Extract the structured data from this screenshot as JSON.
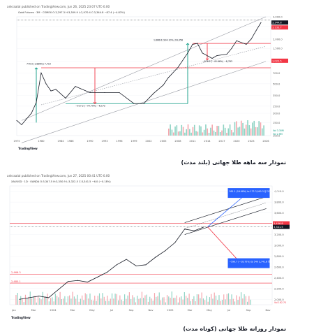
{
  "captions": {
    "top": "نمودار سه ماهه طلا جهانی (بلند مدت)",
    "bottom": "نمودار روزانه طلا جهانی (کوتاه مدت)"
  },
  "chart_data": [
    {
      "type": "line",
      "header": "ankraalal published on TradingView.com, Jun 26, 2025 23:07 UTC-0.00",
      "symbol_line": "Gold Futures · 3M · COMEX   O:3,297.3  H:3,509.9  L:2,970.4  C:3,344.8  −87.4 (−4.83%)",
      "logo": "TradingView",
      "price_tags": [
        "3,344.8",
        "3,133.7",
        "1,022.5"
      ],
      "y_axis_labels": [
        "4,000.0",
        "3,000.0",
        "2,000.0",
        "1,500.0",
        "1,000.0",
        "700.0",
        "500.0",
        "350.0",
        "250.0",
        "200.0",
        "150.0",
        "100.0"
      ],
      "x_axis_labels": [
        "1975",
        "1980",
        "1984",
        "1986",
        "1990",
        "1993",
        "1996",
        "1999",
        "2002",
        "2005",
        "2008",
        "2011",
        "2014",
        "2017",
        "2020",
        "2023",
        "2026"
      ],
      "ylim": [
        100,
        4000
      ],
      "annotations": [
        "770.0 (1.886%) 7,710",
        "−517.2 (−70.70%) −6,172",
        "1,666.6 (934.10%) 16,358",
        "−878.2 (−45.66%) −8,783",
        "Vol 3.30M",
        "Vol 2.6M"
      ],
      "x": [
        1975,
        1976,
        1978,
        1979,
        1980,
        1981,
        1982,
        1983,
        1985,
        1987,
        1990,
        1993,
        1996,
        1999,
        2001,
        2003,
        2005,
        2006,
        2008,
        2010,
        2011,
        2012,
        2013,
        2015,
        2016,
        2018,
        2019,
        2020,
        2022,
        2023,
        2024,
        2025
      ],
      "values": [
        160,
        140,
        200,
        280,
        700,
        500,
        400,
        420,
        320,
        460,
        380,
        380,
        380,
        270,
        270,
        370,
        480,
        600,
        830,
        1300,
        1700,
        1750,
        1300,
        1100,
        1200,
        1250,
        1500,
        1900,
        1700,
        2000,
        2600,
        3344.8
      ]
    },
    {
      "type": "line",
      "header": "ankraalal published on TradingView.com, Jun 27, 2025 00:41 UTC-0.00",
      "symbol_line": "XAUUSD · 1D · OANDA   O:3,347.5  H:3,350.9  L:3,322.5  C:3,341.5  −6.0 (−0.18%)",
      "logo": "TradingView",
      "price_tags": [
        "3,406.8",
        "3,341.5",
        "2,466.3",
        "2,480.1"
      ],
      "y_axis_labels": [
        "4,000.0",
        "3,800.0",
        "3,600.0",
        "3,400.0",
        "3,200.0",
        "3,000.0",
        "2,800.0",
        "2,600.0",
        "2,400.0",
        "2,200.0",
        "2,000.0"
      ],
      "x_axis_labels": [
        "Jan",
        "Mar",
        "2024",
        "Mar",
        "May",
        "Jul",
        "Sep",
        "Nov",
        "2025",
        "Mar",
        "May",
        "Jul",
        "Sep",
        "Nov"
      ],
      "ylim": [
        1900,
        4100
      ],
      "annotations": [
        "581.1 (16.98%) to 173 3,990.3 @ 2025-10-17",
        "−599.7 (−18.75%) to 540 2,741.8 @ 2025-09-08",
        "Vol 162.7K"
      ],
      "x": [
        "2023-11",
        "2024-01",
        "2024-02",
        "2024-03",
        "2024-04",
        "2024-05",
        "2024-06",
        "2024-07",
        "2024-08",
        "2024-09",
        "2024-10",
        "2024-11",
        "2024-12",
        "2025-01",
        "2025-02",
        "2025-03",
        "2025-04",
        "2025-05",
        "2025-06"
      ],
      "values": [
        2000,
        2060,
        2030,
        2180,
        2330,
        2350,
        2320,
        2410,
        2500,
        2640,
        2740,
        2620,
        2640,
        2780,
        2900,
        3050,
        3300,
        3270,
        3341.5
      ]
    }
  ]
}
